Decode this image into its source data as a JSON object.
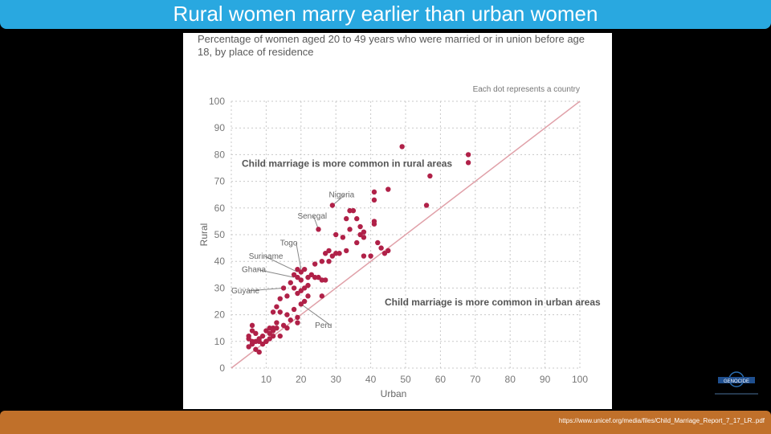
{
  "slide": {
    "title": "Rural women marry earlier than urban women",
    "source_url": "https://www.unicef.org/media/files/Child_Marriage_Report_7_17_LR..pdf"
  },
  "logo": {
    "icon": "organization-logo",
    "text": "GENOCIDE"
  },
  "colors": {
    "title_bar": "#29a8e0",
    "footer_bar": "#c0702a",
    "dot": "#b02148",
    "diagonal": "#e0a0a8",
    "grid": "#c8c8c8"
  },
  "chart_data": {
    "type": "scatter",
    "title": "Percentage of women aged 20 to 49 years who were married or in union before age 18, by place of residence",
    "note": "Each dot represents a country",
    "xlabel": "Urban",
    "ylabel": "Rural",
    "xlim": [
      0,
      100
    ],
    "ylim": [
      0,
      100
    ],
    "xticks": [
      "10",
      "20",
      "30",
      "40",
      "50",
      "60",
      "70",
      "80",
      "90",
      "100"
    ],
    "yticks": [
      "0",
      "10",
      "20",
      "30",
      "40",
      "50",
      "60",
      "70",
      "80",
      "90",
      "100"
    ],
    "grid": true,
    "reference_line": "x = y",
    "region_labels": [
      "Child marriage is more common in rural areas",
      "Child marriage is more common in urban areas"
    ],
    "annotations": [
      {
        "label": "Nigeria",
        "x": 29,
        "y": 61
      },
      {
        "label": "Senegal",
        "x": 25,
        "y": 52
      },
      {
        "label": "Togo",
        "x": 20,
        "y": 37
      },
      {
        "label": "Suriname",
        "x": 19,
        "y": 36
      },
      {
        "label": "Ghana",
        "x": 18,
        "y": 34
      },
      {
        "label": "Guyane",
        "x": 15,
        "y": 30
      },
      {
        "label": "Peru",
        "x": 20,
        "y": 24
      }
    ],
    "points": [
      [
        49,
        83
      ],
      [
        68,
        80
      ],
      [
        68,
        77
      ],
      [
        57,
        72
      ],
      [
        56,
        61
      ],
      [
        41,
        66
      ],
      [
        45,
        67
      ],
      [
        41,
        63
      ],
      [
        29,
        61
      ],
      [
        33,
        56
      ],
      [
        34,
        59
      ],
      [
        35,
        59
      ],
      [
        36,
        56
      ],
      [
        37,
        53
      ],
      [
        34,
        52
      ],
      [
        32,
        49
      ],
      [
        30,
        50
      ],
      [
        25,
        52
      ],
      [
        41,
        55
      ],
      [
        41,
        54
      ],
      [
        38,
        51
      ],
      [
        37,
        50
      ],
      [
        36,
        47
      ],
      [
        38,
        49
      ],
      [
        42,
        47
      ],
      [
        43,
        45
      ],
      [
        45,
        44
      ],
      [
        44,
        43
      ],
      [
        40,
        42
      ],
      [
        38,
        42
      ],
      [
        33,
        44
      ],
      [
        31,
        43
      ],
      [
        30,
        43
      ],
      [
        29,
        42
      ],
      [
        28,
        44
      ],
      [
        27,
        43
      ],
      [
        26,
        40
      ],
      [
        24,
        39
      ],
      [
        21,
        37
      ],
      [
        20,
        36
      ],
      [
        19,
        37
      ],
      [
        18,
        35
      ],
      [
        19,
        34
      ],
      [
        20,
        33
      ],
      [
        22,
        34
      ],
      [
        23,
        35
      ],
      [
        24,
        34
      ],
      [
        25,
        34
      ],
      [
        26,
        33
      ],
      [
        28,
        40
      ],
      [
        27,
        33
      ],
      [
        26,
        27
      ],
      [
        22,
        31
      ],
      [
        21,
        30
      ],
      [
        20,
        29
      ],
      [
        19,
        28
      ],
      [
        22,
        27
      ],
      [
        21,
        25
      ],
      [
        20,
        24
      ],
      [
        17,
        32
      ],
      [
        18,
        30
      ],
      [
        15,
        30
      ],
      [
        16,
        27
      ],
      [
        14,
        26
      ],
      [
        13,
        23
      ],
      [
        12,
        21
      ],
      [
        14,
        21
      ],
      [
        16,
        20
      ],
      [
        18,
        22
      ],
      [
        19,
        19
      ],
      [
        17,
        18
      ],
      [
        15,
        16
      ],
      [
        13,
        15
      ],
      [
        12,
        14
      ],
      [
        11,
        15
      ],
      [
        10,
        14
      ],
      [
        11,
        13
      ],
      [
        12,
        12
      ],
      [
        9,
        12
      ],
      [
        8,
        11
      ],
      [
        7,
        10
      ],
      [
        6,
        9
      ],
      [
        5,
        12
      ],
      [
        5,
        11
      ],
      [
        6,
        14
      ],
      [
        6,
        16
      ],
      [
        7,
        13
      ],
      [
        8,
        10
      ],
      [
        9,
        9
      ],
      [
        10,
        10
      ],
      [
        11,
        11
      ],
      [
        12,
        15
      ],
      [
        13,
        17
      ],
      [
        5,
        8
      ],
      [
        6,
        10
      ],
      [
        7,
        7
      ],
      [
        8,
        6
      ],
      [
        10,
        10
      ],
      [
        14,
        12
      ],
      [
        19,
        17
      ],
      [
        16,
        15
      ]
    ]
  }
}
